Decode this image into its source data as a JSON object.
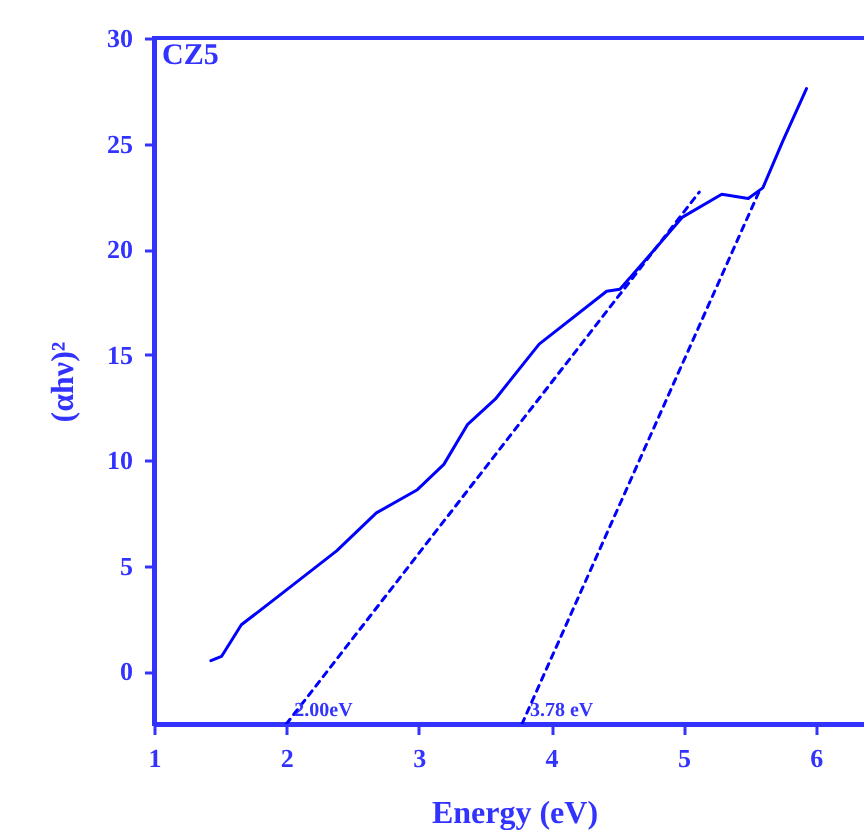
{
  "chart_data": {
    "type": "line",
    "title": "CZ5",
    "xlabel": "Energy (eV)",
    "ylabel": "(αhν)²",
    "xlim": [
      1,
      6.44
    ],
    "ylim": [
      -2.5,
      30
    ],
    "xticks": [
      1,
      2,
      3,
      4,
      5,
      6
    ],
    "yticks": [
      0,
      5,
      10,
      15,
      20,
      25,
      30
    ],
    "grid": false,
    "series": [
      {
        "type": "line",
        "color": "#0000ff",
        "line_style": "solid",
        "x": [
          1.43,
          1.51,
          1.66,
          1.97,
          2.38,
          2.68,
          2.99,
          3.19,
          3.37,
          3.58,
          3.91,
          4.42,
          4.52,
          4.73,
          4.99,
          5.29,
          5.49,
          5.6,
          5.75,
          5.93
        ],
        "values": [
          0.5,
          0.7,
          2.2,
          3.7,
          5.7,
          7.5,
          8.6,
          9.8,
          11.7,
          12.9,
          15.5,
          18.0,
          18.1,
          19.6,
          21.5,
          22.6,
          22.4,
          22.9,
          25.1,
          27.6
        ]
      },
      {
        "type": "line",
        "color": "#0000ff",
        "line_style": "dashed",
        "x": [
          2.0,
          5.12
        ],
        "values": [
          -2.5,
          22.7
        ]
      },
      {
        "type": "line",
        "color": "#0000ff",
        "line_style": "dashed",
        "x": [
          3.78,
          5.57
        ],
        "values": [
          -2.5,
          22.7
        ]
      }
    ],
    "annotations": [
      {
        "text": "2.00eV",
        "x": 2.0,
        "y": -2.5
      },
      {
        "text": "3.78 eV",
        "x": 3.78,
        "y": -2.5
      }
    ]
  }
}
